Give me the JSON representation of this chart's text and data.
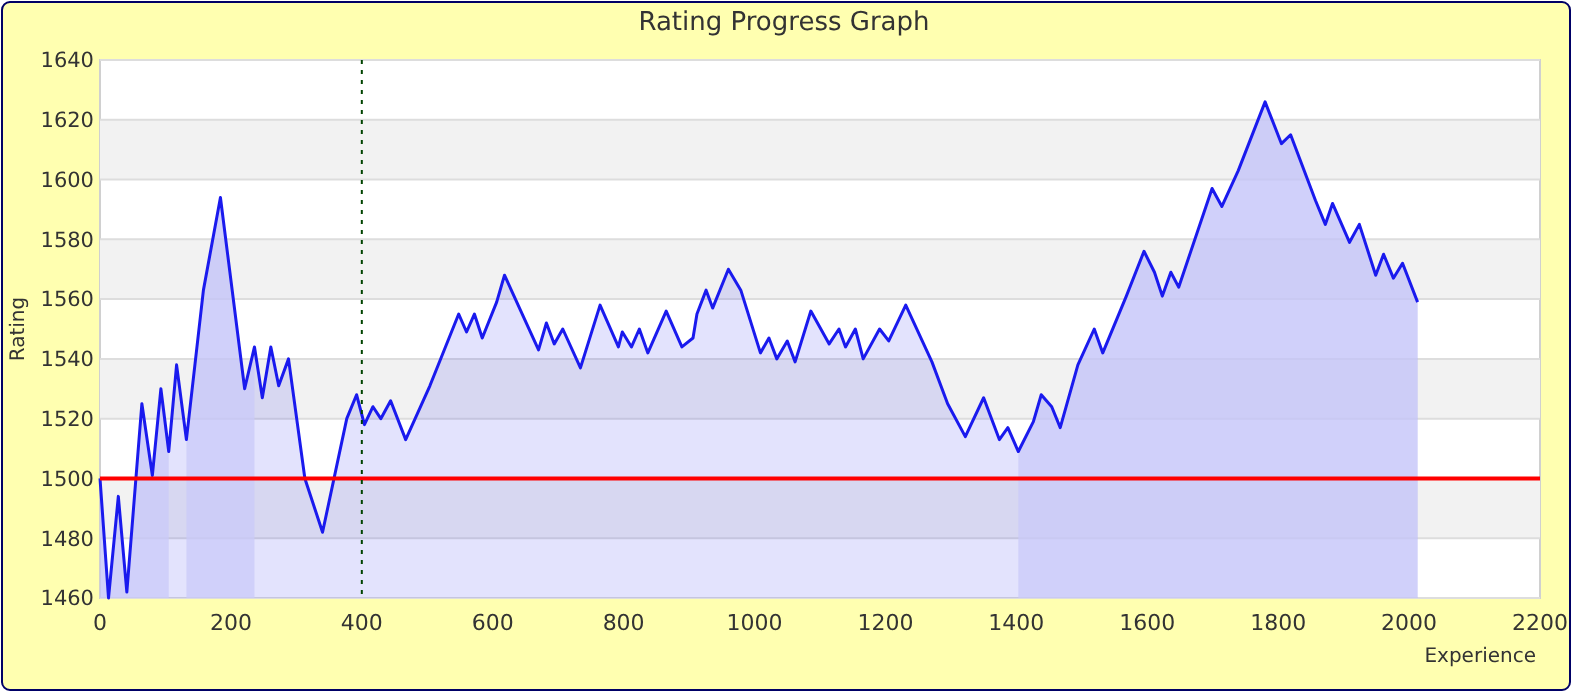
{
  "chart_data": {
    "type": "area",
    "title": "Rating Progress Graph",
    "xlabel": "Experience",
    "ylabel": "Rating",
    "xlim": [
      0,
      2200
    ],
    "xticks": [
      0,
      200,
      400,
      600,
      800,
      1000,
      1200,
      1400,
      1600,
      1800,
      2000,
      2200
    ],
    "ylim": [
      1460,
      1640
    ],
    "yticks": [
      1460,
      1480,
      1500,
      1520,
      1540,
      1560,
      1580,
      1600,
      1620,
      1640
    ],
    "grid": "y",
    "series": [
      {
        "color": "#1a1aee",
        "x": [
          0,
          13,
          28,
          41,
          64,
          80,
          93,
          105,
          117,
          132,
          158,
          184,
          221,
          236,
          248,
          261,
          273,
          288,
          313,
          340,
          377,
          392,
          404,
          417,
          429,
          444,
          467,
          504,
          548,
          560,
          572,
          584,
          606,
          618,
          643,
          670,
          682,
          694,
          707,
          734,
          764,
          792,
          798,
          812,
          824,
          837,
          865,
          889,
          906,
          912,
          926,
          936,
          960,
          979,
          1009,
          1022,
          1034,
          1050,
          1062,
          1086,
          1114,
          1129,
          1139,
          1154,
          1166,
          1191,
          1205,
          1231,
          1271,
          1295,
          1322,
          1350,
          1374,
          1387,
          1403,
          1426,
          1438,
          1454,
          1467,
          1494,
          1519,
          1532,
          1568,
          1595,
          1611,
          1623,
          1636,
          1648,
          1699,
          1714,
          1739,
          1780,
          1805,
          1819,
          1857,
          1872,
          1883,
          1909,
          1924,
          1949,
          1961,
          1976,
          1990,
          2013
        ],
        "values": [
          1500,
          1460,
          1494,
          1462,
          1525,
          1501,
          1530,
          1509,
          1538,
          1513,
          1563,
          1594,
          1530,
          1544,
          1527,
          1544,
          1531,
          1540,
          1500,
          1482,
          1520,
          1528,
          1518,
          1524,
          1520,
          1526,
          1513,
          1531,
          1555,
          1549,
          1555,
          1547,
          1559,
          1568,
          1556,
          1543,
          1552,
          1545,
          1550,
          1537,
          1558,
          1544,
          1549,
          1544,
          1550,
          1542,
          1556,
          1544,
          1547,
          1555,
          1563,
          1557,
          1570,
          1563,
          1542,
          1547,
          1540,
          1546,
          1539,
          1556,
          1545,
          1550,
          1544,
          1550,
          1540,
          1550,
          1546,
          1558,
          1539,
          1525,
          1514,
          1527,
          1513,
          1517,
          1509,
          1519,
          1528,
          1524,
          1517,
          1538,
          1550,
          1542,
          1561,
          1576,
          1569,
          1561,
          1569,
          1564,
          1597,
          1591,
          1603,
          1626,
          1612,
          1615,
          1593,
          1585,
          1592,
          1579,
          1585,
          1568,
          1575,
          1567,
          1572,
          1559
        ]
      },
      {
        "color": "#cacaf8",
        "x": [
          0,
          13,
          28,
          41,
          64,
          80,
          93,
          105
        ],
        "values": [
          1500,
          1460,
          1494,
          1462,
          1525,
          1501,
          1530,
          1509
        ]
      },
      {
        "color": "#cacaf8",
        "x": [
          132,
          158,
          184,
          221,
          236
        ],
        "values": [
          1513,
          1563,
          1594,
          1530,
          1544
        ]
      },
      {
        "color": "#cacaf8",
        "x": [
          1403,
          1426,
          1438,
          1454,
          1467,
          1494,
          1519,
          1532,
          1568,
          1595,
          1611,
          1623,
          1636,
          1648,
          1699,
          1714,
          1739,
          1780,
          1805,
          1819,
          1857,
          1872,
          1883,
          1909,
          1924,
          1949,
          1961,
          1976,
          1990,
          2013
        ],
        "values": [
          1509,
          1519,
          1528,
          1524,
          1517,
          1538,
          1550,
          1542,
          1561,
          1576,
          1569,
          1561,
          1569,
          1564,
          1597,
          1591,
          1603,
          1626,
          1612,
          1615,
          1593,
          1585,
          1592,
          1579,
          1585,
          1568,
          1575,
          1567,
          1572,
          1559
        ]
      }
    ],
    "ref_lines": [
      {
        "axis": "y",
        "value": 1500,
        "color": "#ff0000",
        "line_style": "solid"
      },
      {
        "axis": "x",
        "value": 400,
        "color": "#004400",
        "line_style": "dotted"
      }
    ]
  }
}
